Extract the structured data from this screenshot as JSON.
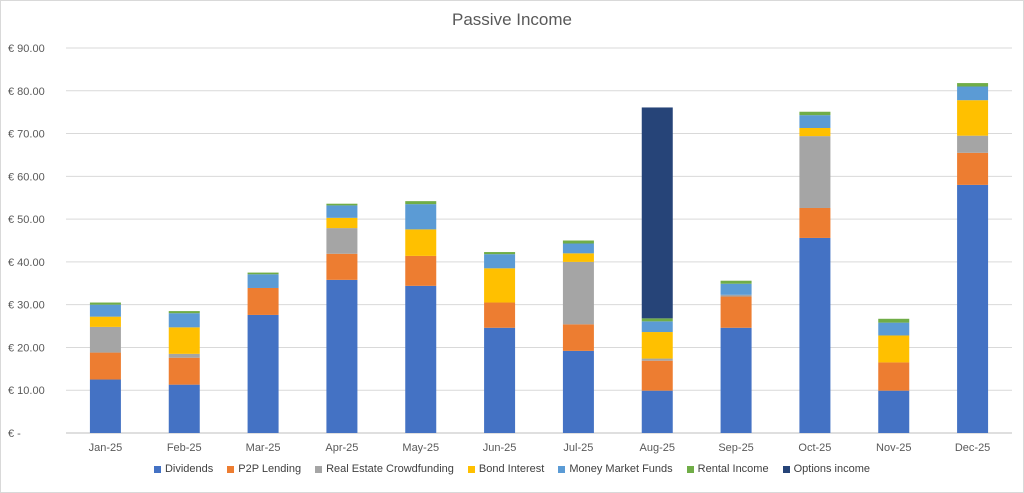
{
  "chart_data": {
    "type": "bar",
    "stacked": true,
    "title": "Passive Income",
    "xlabel": "",
    "ylabel": "",
    "ylim": [
      0,
      90
    ],
    "y_ticks": [
      0,
      10,
      20,
      30,
      40,
      50,
      60,
      70,
      80,
      90
    ],
    "y_tick_labels": [
      "€ -",
      "€ 10.00",
      "€ 20.00",
      "€ 30.00",
      "€ 40.00",
      "€ 50.00",
      "€ 60.00",
      "€ 70.00",
      "€ 80.00",
      "€ 90.00"
    ],
    "grid": true,
    "legend_position": "bottom",
    "categories": [
      "Jan-25",
      "Feb-25",
      "Mar-25",
      "Apr-25",
      "May-25",
      "Jun-25",
      "Jul-25",
      "Aug-25",
      "Sep-25",
      "Oct-25",
      "Nov-25",
      "Dec-25"
    ],
    "series": [
      {
        "name": "Dividends",
        "color": "#4472C4",
        "values": [
          12.5,
          11.3,
          27.6,
          35.8,
          34.4,
          24.6,
          19.2,
          9.9,
          24.6,
          45.6,
          9.9,
          58.0
        ]
      },
      {
        "name": "P2P Lending",
        "color": "#ED7D31",
        "values": [
          6.3,
          6.3,
          6.3,
          6.1,
          7.0,
          5.9,
          6.2,
          7.0,
          7.3,
          7.0,
          6.6,
          7.5
        ]
      },
      {
        "name": "Real Estate Crowdfunding",
        "color": "#A5A5A5",
        "values": [
          6.0,
          0.9,
          0.0,
          6.0,
          0.0,
          0.0,
          14.6,
          0.5,
          0.4,
          16.8,
          0.0,
          4.0
        ]
      },
      {
        "name": "Bond Interest",
        "color": "#FFC000",
        "values": [
          2.4,
          6.2,
          0.0,
          2.4,
          6.2,
          8.0,
          2.0,
          6.2,
          0.0,
          1.9,
          6.3,
          8.3
        ]
      },
      {
        "name": "Money Market Funds",
        "color": "#5B9BD5",
        "values": [
          2.8,
          3.3,
          3.2,
          2.9,
          5.9,
          3.3,
          2.3,
          2.5,
          2.6,
          3.0,
          3.0,
          3.2
        ]
      },
      {
        "name": "Rental Income",
        "color": "#70AD47",
        "values": [
          0.5,
          0.5,
          0.4,
          0.4,
          0.7,
          0.5,
          0.7,
          0.7,
          0.7,
          0.8,
          0.9,
          0.8
        ]
      },
      {
        "name": "Options income",
        "color": "#264478",
        "values": [
          0,
          0,
          0,
          0,
          0,
          0,
          0,
          49.3,
          0,
          0,
          0,
          0
        ]
      }
    ]
  }
}
